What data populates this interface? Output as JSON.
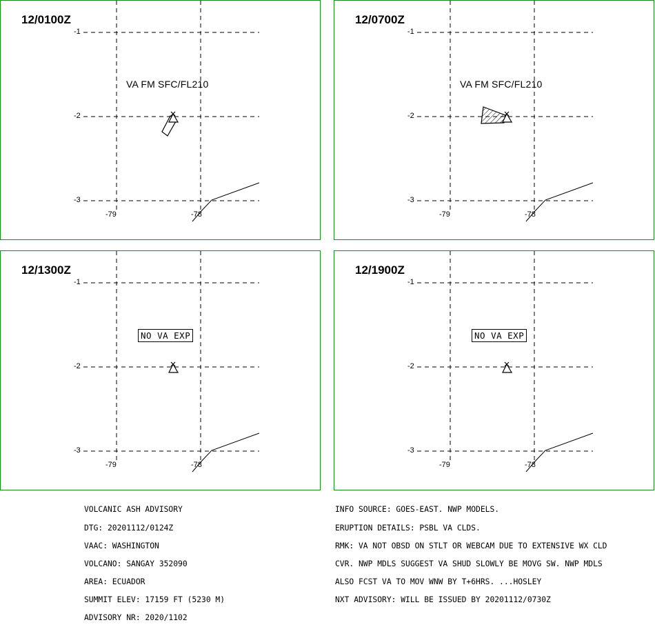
{
  "panels": [
    {
      "time": "12/0100Z",
      "label_type": "va",
      "label": "VA FM SFC/FL210"
    },
    {
      "time": "12/0700Z",
      "label_type": "va",
      "label": "VA FM SFC/FL210"
    },
    {
      "time": "12/1300Z",
      "label_type": "none",
      "label": "NO VA EXP"
    },
    {
      "time": "12/1900Z",
      "label_type": "none",
      "label": "NO VA EXP"
    }
  ],
  "axes": {
    "lat_labels": [
      "-1",
      "-2",
      "-3"
    ],
    "lon_labels": [
      "-79",
      "-78"
    ]
  },
  "advisory_left": [
    "VOLCANIC ASH ADVISORY",
    "DTG: 20201112/0124Z",
    "VAAC: WASHINGTON",
    "VOLCANO: SANGAY 352090",
    "AREA: ECUADOR",
    "SUMMIT ELEV: 17159 FT (5230 M)",
    "ADVISORY NR: 2020/1102"
  ],
  "advisory_right": [
    "INFO SOURCE: GOES-EAST. NWP MODELS.",
    "ERUPTION DETAILS: PSBL VA CLDS.",
    "RMK: VA NOT OBSD ON STLT OR WEBCAM DUE TO EXTENSIVE WX CLD",
    "CVR. NWP MDLS SUGGEST VA SHUD SLOWLY BE MOVG SW. NWP MDLS",
    "ALSO FCST VA TO MOV WNW BY T+6HRS. ...HOSLEY",
    "NXT ADVISORY: WILL BE ISSUED BY 20201112/0730Z"
  ]
}
